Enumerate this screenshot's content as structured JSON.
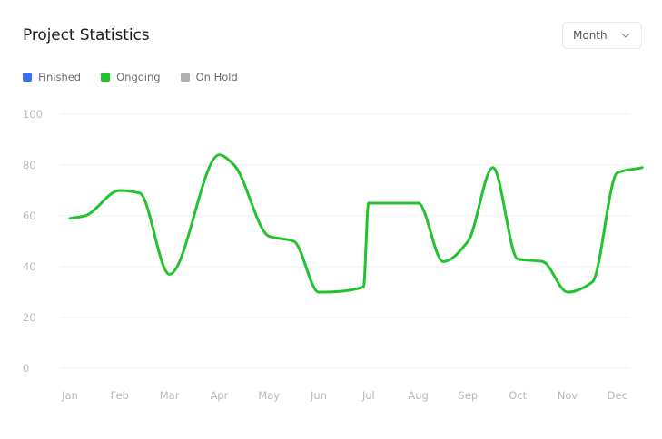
{
  "header": {
    "title": "Project Statistics"
  },
  "period_select": {
    "value": "Month",
    "icon": "chevron-down-icon"
  },
  "legend": [
    {
      "label": "Finished",
      "color": "#3b6ff0"
    },
    {
      "label": "Ongoing",
      "color": "#22c32e"
    },
    {
      "label": "On Hold",
      "color": "#b0b0b0"
    }
  ],
  "chart_data": {
    "type": "line",
    "title": "Project Statistics",
    "categories": [
      "Jan",
      "Feb",
      "Mar",
      "Apr",
      "May",
      "Jun",
      "Jul",
      "Aug",
      "Sep",
      "Oct",
      "Nov",
      "Dec"
    ],
    "x_values": [
      0,
      0.3,
      1,
      1.4,
      2,
      3,
      3.3,
      4,
      4.5,
      5,
      5.9,
      6,
      7,
      7.5,
      8,
      8.5,
      9,
      9.5,
      10,
      10.5,
      11,
      11.5
    ],
    "series": [
      {
        "name": "Ongoing",
        "color": "#22c32e",
        "values": [
          59,
          60,
          70,
          69,
          37,
          84,
          80,
          52,
          50,
          30,
          32,
          65,
          65,
          42,
          50,
          79,
          43,
          42,
          30,
          34,
          77,
          79
        ]
      }
    ],
    "yticks": [
      "0",
      "20",
      "40",
      "60",
      "80",
      "100"
    ],
    "ylim": [
      0,
      100
    ],
    "grid": true,
    "legend_position": "top-left"
  }
}
